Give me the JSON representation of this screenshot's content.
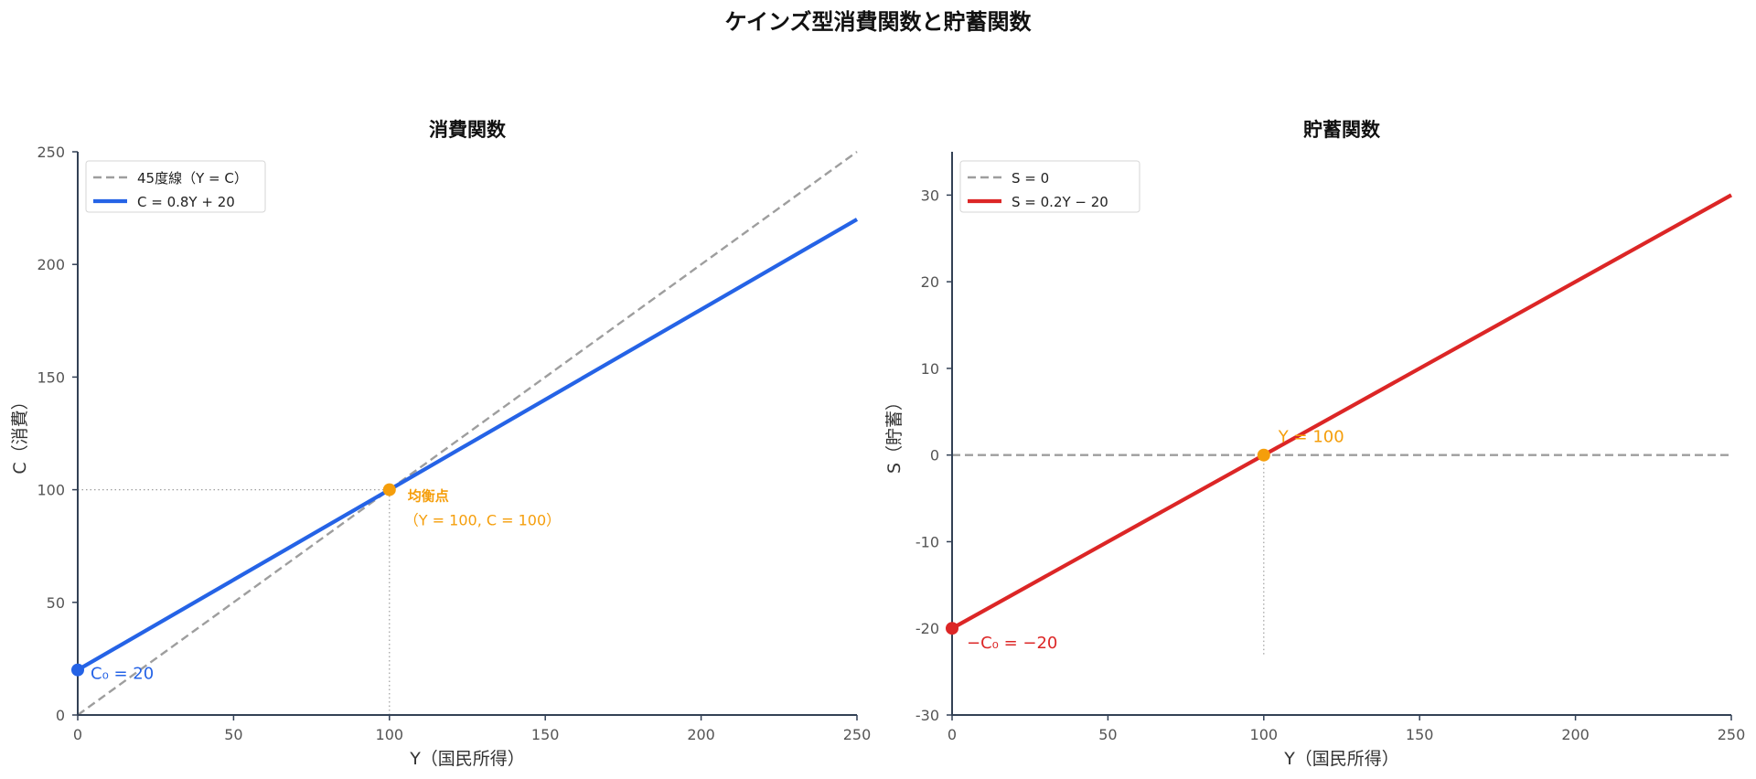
{
  "figure": {
    "suptitle": "ケインズ型消費関数と貯蓄関数"
  },
  "chart_data": [
    {
      "type": "line",
      "title": "消費関数",
      "xlabel": "Y（国民所得）",
      "ylabel": "C（消費）",
      "xlim": [
        0,
        250
      ],
      "ylim": [
        0,
        250
      ],
      "xticks": [
        0,
        50,
        100,
        150,
        200,
        250
      ],
      "yticks": [
        0,
        50,
        100,
        150,
        200,
        250
      ],
      "grid": false,
      "legend_position": "upper-left",
      "series": [
        {
          "name": "45度線（Y = C）",
          "style": "dashed",
          "color": "#9e9e9e",
          "x": [
            0,
            250
          ],
          "y": [
            0,
            250
          ]
        },
        {
          "name": "C = 0.8Y + 20",
          "style": "solid",
          "color": "#2563e6",
          "x": [
            0,
            250
          ],
          "y": [
            20,
            220
          ]
        }
      ],
      "points": [
        {
          "name": "intercept",
          "x": 0,
          "y": 20,
          "color": "#2563e6",
          "label": "C₀ = 20"
        },
        {
          "name": "equilibrium",
          "x": 100,
          "y": 100,
          "color": "#f59e0b",
          "label_line1": "均衡点",
          "label_line2": "（Y = 100, C = 100）"
        }
      ],
      "guides": [
        {
          "orientation": "horizontal",
          "value": 100,
          "from": 0,
          "to": 100
        },
        {
          "orientation": "vertical",
          "value": 100,
          "from": 0,
          "to": 100
        }
      ]
    },
    {
      "type": "line",
      "title": "貯蓄関数",
      "xlabel": "Y（国民所得）",
      "ylabel": "S（貯蓄）",
      "xlim": [
        0,
        250
      ],
      "ylim": [
        -30,
        35
      ],
      "xticks": [
        0,
        50,
        100,
        150,
        200,
        250
      ],
      "yticks": [
        -30,
        -20,
        -10,
        0,
        10,
        20,
        30
      ],
      "grid": false,
      "legend_position": "upper-left",
      "series": [
        {
          "name": "S = 0",
          "style": "dashed",
          "color": "#9e9e9e",
          "x": [
            0,
            250
          ],
          "y": [
            0,
            0
          ]
        },
        {
          "name": "S = 0.2Y − 20",
          "style": "solid",
          "color": "#dc2626",
          "x": [
            0,
            250
          ],
          "y": [
            -20,
            30
          ]
        }
      ],
      "points": [
        {
          "name": "intercept",
          "x": 0,
          "y": -20,
          "color": "#dc2626",
          "label": "−C₀ = −20"
        },
        {
          "name": "equilibrium",
          "x": 100,
          "y": 0,
          "color": "#f59e0b",
          "label": "Y = 100"
        }
      ],
      "guides": [
        {
          "orientation": "vertical",
          "value": 100,
          "from": -23,
          "to": 0
        }
      ]
    }
  ]
}
